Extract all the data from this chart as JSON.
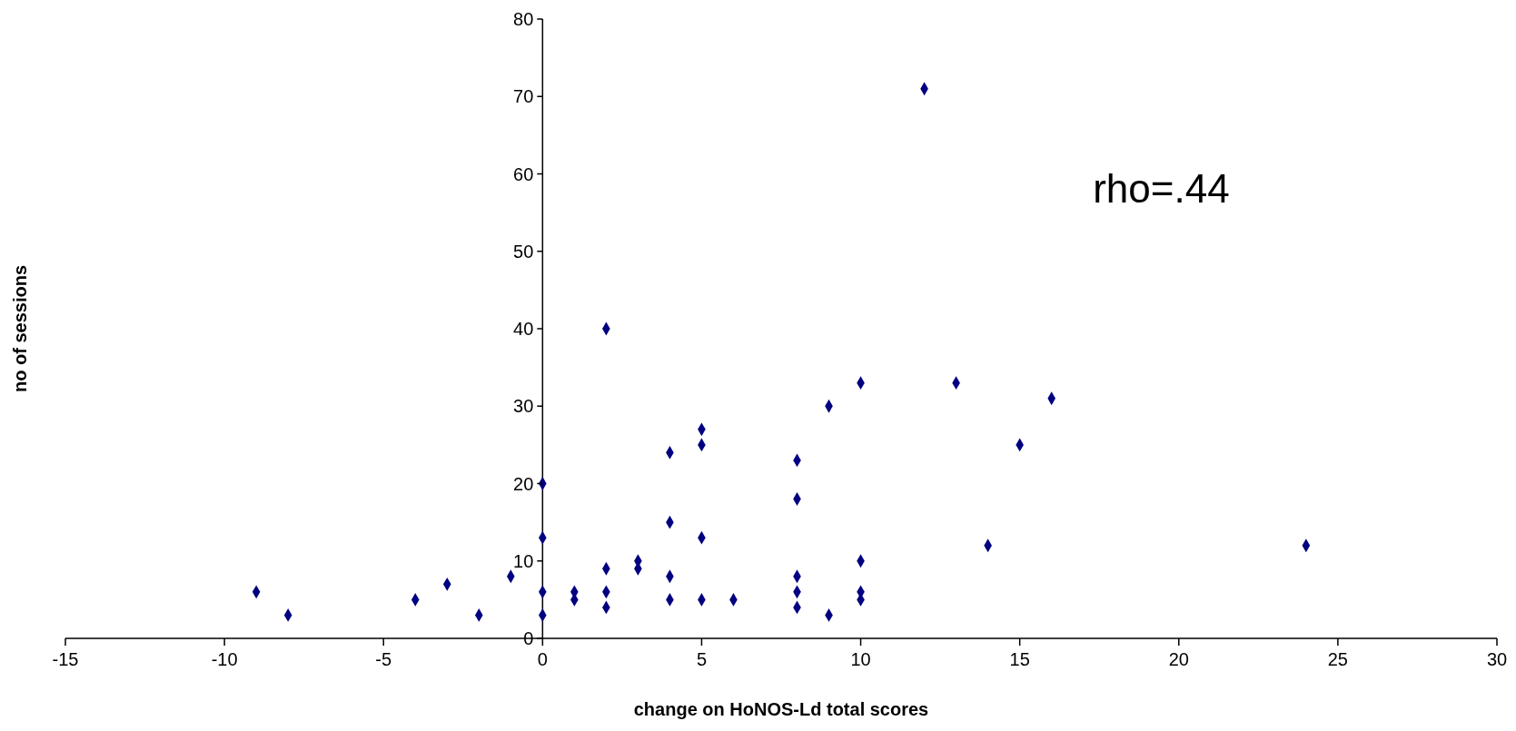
{
  "chart_data": {
    "type": "scatter",
    "xlabel": "change on HoNOS-Ld total scores",
    "ylabel": "no of sessions",
    "annotations": [
      "rho=.44"
    ],
    "xlim": [
      -15,
      30
    ],
    "xticks": [
      -15,
      -10,
      -5,
      0,
      5,
      10,
      15,
      20,
      25,
      30
    ],
    "ylim": [
      0,
      80
    ],
    "yticks": [
      0,
      10,
      20,
      30,
      40,
      50,
      60,
      70,
      80
    ],
    "grid": false,
    "legend": false,
    "marker": "diamond",
    "series": [
      {
        "color": "#000080",
        "x": [
          -9,
          -8,
          -4,
          -3,
          -2,
          -1,
          0,
          0,
          0,
          0,
          1,
          1,
          2,
          2,
          2,
          2,
          3,
          3,
          4,
          4,
          4,
          4,
          5,
          5,
          5,
          5,
          6,
          8,
          8,
          8,
          8,
          8,
          9,
          9,
          10,
          10,
          10,
          10,
          12,
          13,
          14,
          15,
          16,
          24
        ],
        "values": [
          6,
          3,
          5,
          7,
          3,
          8,
          20,
          13,
          6,
          3,
          6,
          5,
          40,
          9,
          6,
          4,
          10,
          9,
          24,
          15,
          8,
          5,
          27,
          25,
          13,
          5,
          5,
          23,
          18,
          8,
          6,
          4,
          30,
          3,
          33,
          10,
          6,
          5,
          71,
          33,
          12,
          25,
          31,
          12
        ]
      }
    ]
  }
}
